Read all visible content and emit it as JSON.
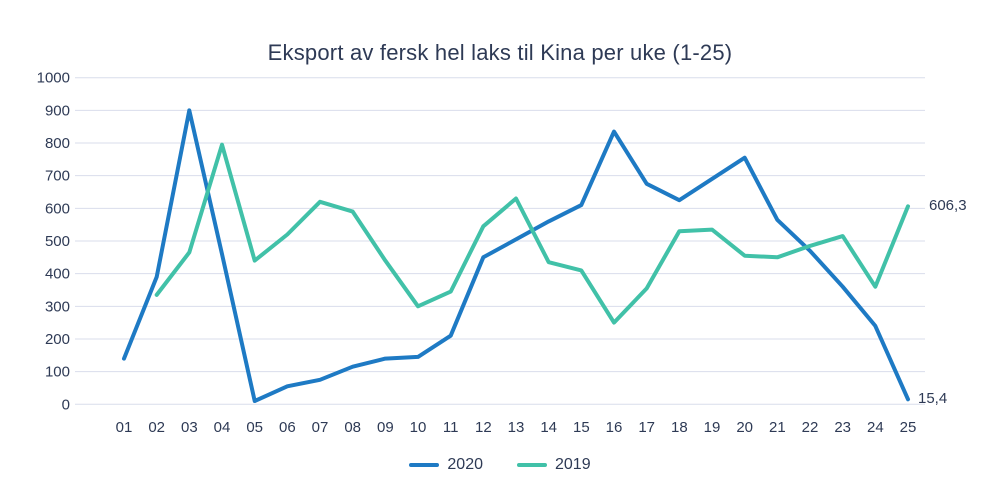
{
  "title": "Eksport av fersk hel laks til Kina per uke (1-25)",
  "colors": {
    "series_2020": "#1e7ac4",
    "series_2019": "#41c1a8",
    "grid": "#d9ddeb",
    "text": "#2e3a55",
    "background": "#ffffff"
  },
  "legend": {
    "items": [
      {
        "label": "2020",
        "color": "#1e7ac4"
      },
      {
        "label": "2019",
        "color": "#41c1a8"
      }
    ]
  },
  "chart_data": {
    "type": "line",
    "title": "Eksport av fersk hel laks til Kina per uke (1-25)",
    "xlabel": "",
    "ylabel": "",
    "categories": [
      "01",
      "02",
      "03",
      "04",
      "05",
      "06",
      "07",
      "08",
      "09",
      "10",
      "11",
      "12",
      "13",
      "14",
      "15",
      "16",
      "17",
      "18",
      "19",
      "20",
      "21",
      "22",
      "23",
      "24",
      "25"
    ],
    "y_ticks": [
      0,
      100,
      200,
      300,
      400,
      500,
      600,
      700,
      800,
      900,
      1000
    ],
    "ylim": [
      0,
      1000
    ],
    "grid": "horizontal",
    "legend_position": "bottom",
    "series": [
      {
        "name": "2020",
        "color": "#1e7ac4",
        "values": [
          140,
          390,
          900,
          460,
          10,
          55,
          75,
          115,
          140,
          145,
          210,
          450,
          505,
          560,
          610,
          835,
          675,
          625,
          690,
          755,
          565,
          470,
          360,
          240,
          15.4
        ],
        "end_label": "15,4"
      },
      {
        "name": "2019",
        "color": "#41c1a8",
        "values": [
          null,
          335,
          465,
          795,
          440,
          520,
          620,
          590,
          440,
          300,
          345,
          545,
          630,
          435,
          410,
          250,
          355,
          530,
          535,
          455,
          450,
          485,
          515,
          360,
          606.3
        ],
        "end_label": "606,3"
      }
    ]
  }
}
